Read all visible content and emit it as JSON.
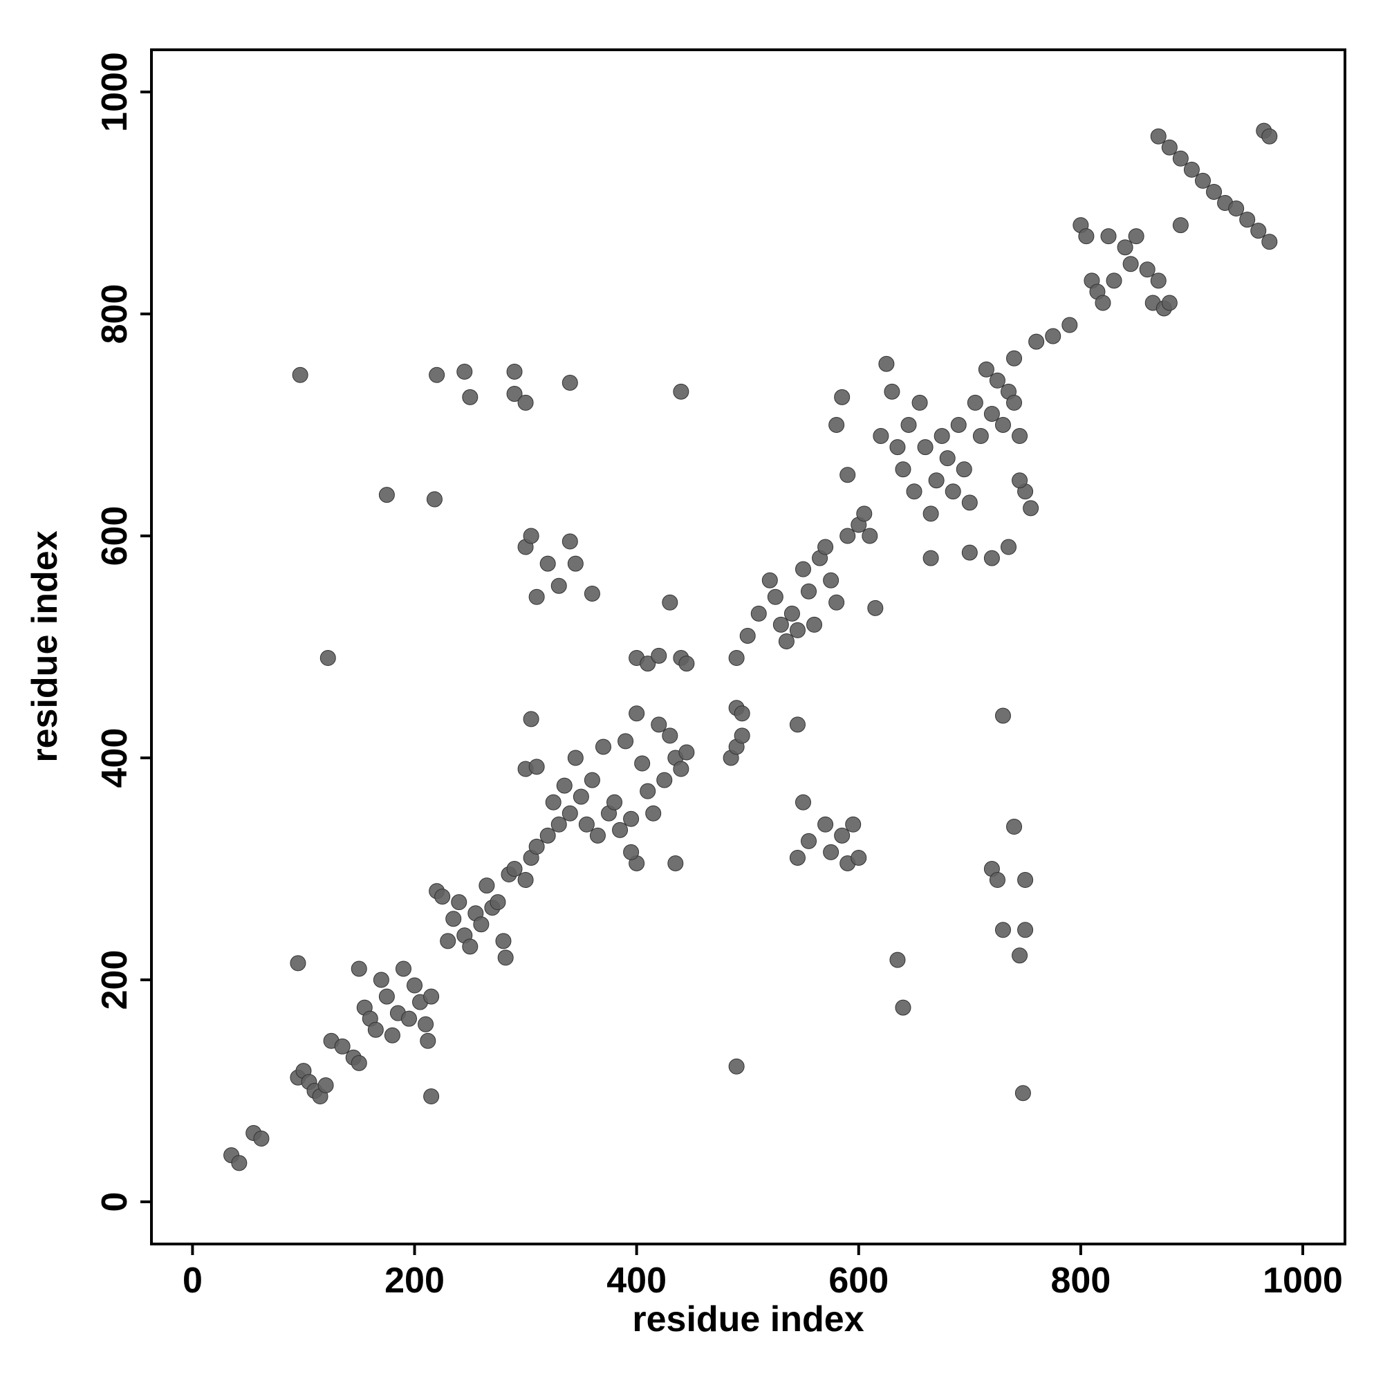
{
  "chart_data": {
    "type": "scatter",
    "xlabel": "residue index",
    "ylabel": "residue index",
    "xlim": [
      -37,
      1038
    ],
    "ylim": [
      -38,
      1038
    ],
    "xticks": [
      0,
      200,
      400,
      600,
      800,
      1000
    ],
    "yticks": [
      0,
      200,
      400,
      600,
      800,
      1000
    ],
    "color": "#606060",
    "x": [
      35,
      42,
      55,
      62,
      95,
      100,
      105,
      110,
      115,
      120,
      125,
      135,
      145,
      150,
      150,
      155,
      160,
      165,
      170,
      175,
      180,
      185,
      190,
      195,
      200,
      205,
      210,
      212,
      215,
      220,
      225,
      230,
      235,
      240,
      245,
      250,
      255,
      260,
      265,
      270,
      275,
      280,
      282,
      285,
      290,
      300,
      305,
      310,
      320,
      325,
      330,
      335,
      340,
      345,
      350,
      355,
      360,
      365,
      370,
      375,
      380,
      385,
      390,
      395,
      400,
      405,
      410,
      415,
      420,
      425,
      430,
      435,
      440,
      445,
      97,
      122,
      95,
      175,
      218,
      215,
      220,
      245,
      250,
      290,
      290,
      300,
      340,
      440,
      300,
      305,
      310,
      320,
      330,
      340,
      345,
      360,
      305,
      300,
      310,
      400,
      395,
      400,
      410,
      420,
      440,
      445,
      435,
      430,
      490,
      495,
      485,
      490,
      495,
      490,
      545,
      545,
      550,
      555,
      570,
      575,
      585,
      590,
      600,
      595,
      635,
      640,
      730,
      720,
      725,
      730,
      740,
      745,
      750,
      750,
      748,
      490,
      500,
      510,
      520,
      525,
      530,
      535,
      540,
      545,
      550,
      555,
      560,
      565,
      570,
      575,
      580,
      590,
      600,
      605,
      610,
      615,
      580,
      585,
      590,
      620,
      625,
      630,
      635,
      640,
      645,
      650,
      655,
      660,
      665,
      670,
      675,
      680,
      685,
      690,
      695,
      700,
      705,
      710,
      715,
      720,
      725,
      730,
      735,
      740,
      745,
      750,
      755,
      665,
      700,
      720,
      735,
      745,
      740,
      760,
      775,
      790,
      800,
      805,
      810,
      815,
      820,
      825,
      830,
      840,
      845,
      850,
      860,
      865,
      870,
      875,
      880,
      890,
      870,
      880,
      890,
      900,
      910,
      920,
      930,
      940,
      950,
      960,
      970,
      965,
      970
    ],
    "y": [
      42,
      35,
      62,
      57,
      112,
      118,
      108,
      100,
      95,
      105,
      145,
      140,
      130,
      125,
      210,
      175,
      165,
      155,
      200,
      185,
      150,
      170,
      210,
      165,
      195,
      180,
      160,
      145,
      185,
      280,
      275,
      235,
      255,
      270,
      240,
      230,
      260,
      250,
      285,
      265,
      270,
      235,
      220,
      295,
      300,
      290,
      310,
      320,
      330,
      360,
      340,
      375,
      350,
      400,
      365,
      340,
      380,
      330,
      410,
      350,
      360,
      335,
      415,
      345,
      440,
      395,
      370,
      350,
      430,
      380,
      420,
      400,
      390,
      405,
      745,
      490,
      215,
      637,
      633,
      95,
      745,
      748,
      725,
      748,
      728,
      720,
      738,
      730,
      590,
      600,
      545,
      575,
      555,
      595,
      575,
      548,
      435,
      390,
      392,
      305,
      315,
      490,
      485,
      492,
      490,
      485,
      305,
      540,
      445,
      440,
      400,
      410,
      420,
      122,
      430,
      310,
      360,
      325,
      340,
      315,
      330,
      305,
      310,
      340,
      218,
      175,
      438,
      300,
      290,
      245,
      338,
      222,
      290,
      245,
      98,
      490,
      510,
      530,
      560,
      545,
      520,
      505,
      530,
      515,
      570,
      550,
      520,
      580,
      590,
      560,
      540,
      600,
      610,
      620,
      600,
      535,
      700,
      725,
      655,
      690,
      755,
      730,
      680,
      660,
      700,
      640,
      720,
      680,
      620,
      650,
      690,
      670,
      640,
      700,
      660,
      630,
      720,
      690,
      750,
      710,
      740,
      700,
      730,
      720,
      690,
      640,
      625,
      580,
      585,
      580,
      590,
      650,
      760,
      775,
      780,
      790,
      880,
      870,
      830,
      820,
      810,
      870,
      830,
      860,
      845,
      870,
      840,
      810,
      830,
      805,
      810,
      880,
      960,
      950,
      940,
      930,
      920,
      910,
      900,
      895,
      885,
      875,
      865,
      965,
      960
    ]
  }
}
